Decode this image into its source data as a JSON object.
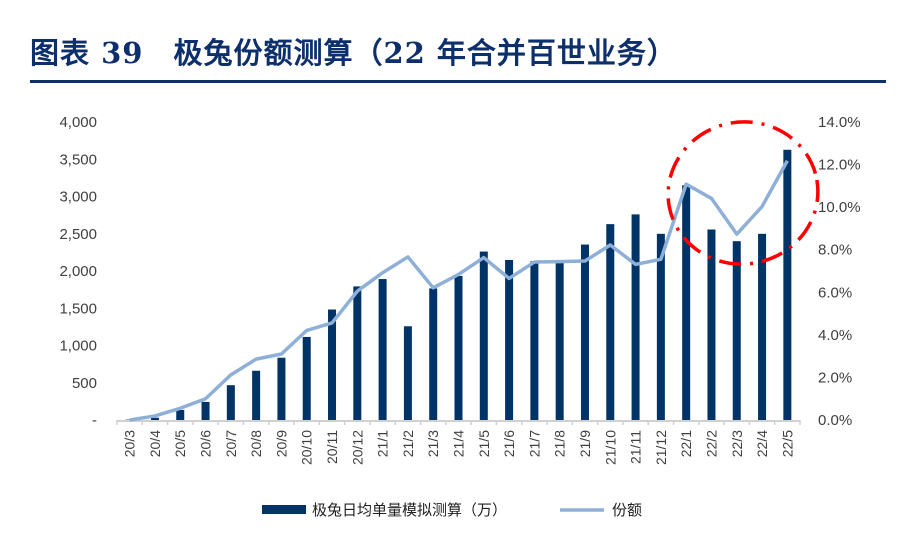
{
  "title": "图表 39　极兔份额测算（22 年合并百世业务）",
  "colors": {
    "bar": "#003366",
    "line": "#8eb0d8",
    "highlight": "#ff0000",
    "title": "#0d2f6b"
  },
  "chart_data": {
    "type": "bar+line",
    "title": "",
    "categories": [
      "20/3",
      "20/4",
      "20/5",
      "20/6",
      "20/7",
      "20/8",
      "20/9",
      "20/10",
      "20/11",
      "20/12",
      "21/1",
      "21/2",
      "21/3",
      "21/4",
      "21/5",
      "21/6",
      "21/7",
      "21/8",
      "21/9",
      "21/10",
      "21/11",
      "21/12",
      "22/1",
      "22/2",
      "22/3",
      "22/4",
      "22/5"
    ],
    "series": [
      {
        "name": "极兔日均单量模拟测算（万）",
        "type": "bar",
        "axis": "left",
        "values": [
          5,
          30,
          135,
          243,
          467,
          661,
          836,
          1115,
          1483,
          1793,
          1892,
          1258,
          1766,
          1933,
          2261,
          2148,
          2130,
          2135,
          2355,
          2629,
          2760,
          2499,
          3150,
          2557,
          2400,
          2499,
          3627
        ]
      },
      {
        "name": "份额",
        "type": "line",
        "axis": "right",
        "unit": "%",
        "values": [
          0.0,
          0.19,
          0.55,
          1.0,
          2.12,
          2.86,
          3.1,
          4.21,
          4.56,
          6.05,
          6.92,
          7.66,
          6.21,
          6.84,
          7.63,
          6.65,
          7.42,
          7.44,
          7.47,
          8.22,
          7.31,
          7.55,
          11.08,
          10.41,
          8.73,
          10.03,
          12.18
        ]
      }
    ],
    "y_left": {
      "range": [
        0,
        4000
      ],
      "ticks": [
        "-",
        "500",
        "1,000",
        "1,500",
        "2,000",
        "2,500",
        "3,000",
        "3,500",
        "4,000"
      ]
    },
    "y_right": {
      "range": [
        0,
        14
      ],
      "ticks": [
        "0.0%",
        "2.0%",
        "4.0%",
        "6.0%",
        "8.0%",
        "10.0%",
        "12.0%",
        "14.0%"
      ]
    },
    "grid": false,
    "legend": "bottom",
    "annotation": "red dash-dot ellipse highlighting 22/1–22/5"
  }
}
